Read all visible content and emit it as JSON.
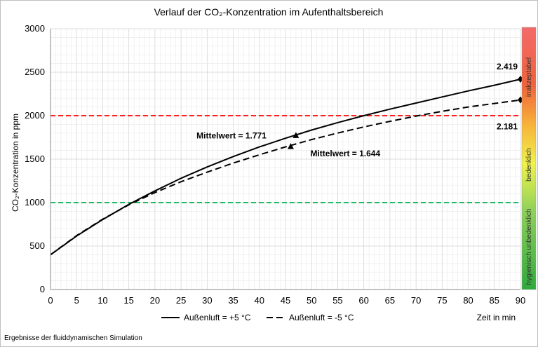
{
  "chart_data": {
    "type": "line",
    "title": "Verlauf der CO₂-Konzentration im Aufenthaltsbereich",
    "xlabel": "Zeit in min",
    "ylabel": "CO₂-Konzentration in ppm",
    "xlim": [
      0,
      90
    ],
    "ylim": [
      0,
      3000
    ],
    "xticks": [
      0,
      5,
      10,
      15,
      20,
      25,
      30,
      35,
      40,
      45,
      50,
      55,
      60,
      65,
      70,
      75,
      80,
      85,
      90
    ],
    "yticks": [
      0,
      500,
      1000,
      1500,
      2000,
      2500,
      3000
    ],
    "grid": true,
    "legend_position": "bottom",
    "series": [
      {
        "name": "Außenluft = +5 °C",
        "style": "solid",
        "color": "#000000",
        "x": [
          0,
          5,
          10,
          15,
          20,
          25,
          30,
          35,
          40,
          45,
          50,
          55,
          60,
          65,
          70,
          75,
          80,
          85,
          90
        ],
        "y": [
          400,
          615,
          805,
          980,
          1135,
          1280,
          1410,
          1530,
          1640,
          1740,
          1835,
          1920,
          2000,
          2075,
          2145,
          2215,
          2285,
          2350,
          2419
        ],
        "marker": {
          "x": 47,
          "y": 1771,
          "label": "Mittelwert = 1.771"
        },
        "end_marker": {
          "x": 90,
          "y": 2419,
          "label": "2.419"
        }
      },
      {
        "name": "Außenluft = -5 °C",
        "style": "dashed",
        "color": "#000000",
        "x": [
          0,
          5,
          10,
          15,
          20,
          25,
          30,
          35,
          40,
          45,
          50,
          55,
          60,
          65,
          70,
          75,
          80,
          85,
          90
        ],
        "y": [
          400,
          620,
          810,
          975,
          1115,
          1240,
          1350,
          1455,
          1550,
          1640,
          1725,
          1800,
          1870,
          1935,
          1995,
          2050,
          2100,
          2140,
          2181
        ],
        "marker": {
          "x": 46,
          "y": 1644,
          "label": "Mittelwert = 1.644"
        },
        "end_marker": {
          "x": 90,
          "y": 2181,
          "label": "2.181"
        }
      }
    ],
    "reference_lines": [
      {
        "y": 2000,
        "color": "#ff0000",
        "style": "dashed"
      },
      {
        "y": 1000,
        "color": "#00b050",
        "style": "dashed"
      }
    ],
    "colorbar": {
      "labels": [
        "hygienisch  unbedenklich",
        "bedenklich",
        "inakzeptabel"
      ],
      "colors": [
        "#2eaa3c",
        "#8fd15a",
        "#f1f24a",
        "#f7b23a",
        "#f0623a",
        "#f26a6a"
      ]
    }
  },
  "footnote": "Ergebnisse der fluiddynamischen Simulation"
}
